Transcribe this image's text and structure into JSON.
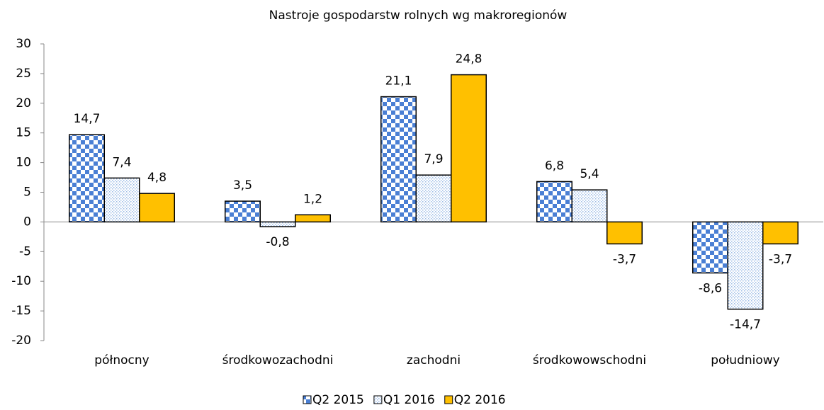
{
  "chart_data": {
    "type": "bar",
    "title": "Nastroje gospodarstw rolnych wg makroregionów",
    "categories": [
      "północny",
      "środkowozachodni",
      "zachodni",
      "środkowowschodni",
      "południowy"
    ],
    "series": [
      {
        "name": "Q2 2015",
        "color": "#4a7fd4",
        "values": [
          14.7,
          3.5,
          21.1,
          6.8,
          -8.6
        ],
        "value_labels": [
          "14,7",
          "3,5",
          "21,1",
          "6,8",
          "-8,6"
        ]
      },
      {
        "name": "Q1 2016",
        "color": "#9bbbe6",
        "values": [
          7.4,
          -0.8,
          7.9,
          5.4,
          -14.7
        ],
        "value_labels": [
          "7,4",
          "-0,8",
          "7,9",
          "5,4",
          "-14,7"
        ]
      },
      {
        "name": "Q2 2016",
        "color": "#ffc000",
        "values": [
          4.8,
          1.2,
          24.8,
          -3.7,
          -3.7
        ],
        "value_labels": [
          "4,8",
          "1,2",
          "24,8",
          "-3,7",
          "-3,7"
        ]
      }
    ],
    "ylim": [
      -20,
      30
    ],
    "yticks": [
      -20,
      -15,
      -10,
      -5,
      0,
      5,
      10,
      15,
      20,
      25,
      30
    ],
    "grid": false,
    "legend": "bottom"
  }
}
